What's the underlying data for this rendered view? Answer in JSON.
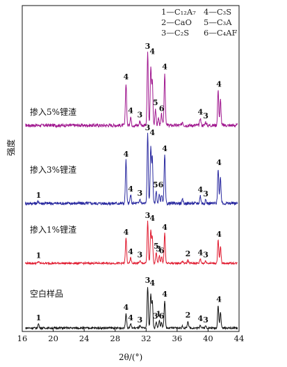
{
  "chart_data": {
    "type": "line",
    "title": "",
    "xlabel": "2θ/(°)",
    "ylabel": "强度",
    "xlim": [
      16,
      44
    ],
    "xticks": [
      16,
      20,
      24,
      28,
      32,
      36,
      40,
      44
    ],
    "tick_labels": [
      "16",
      "20",
      "24",
      "28",
      "32",
      "36",
      "40",
      "44"
    ],
    "grid": false,
    "legend_position": "top-right",
    "legend": [
      {
        "id": "1",
        "label": "1—C₁₂A₇"
      },
      {
        "id": "2",
        "label": "2—CaO"
      },
      {
        "id": "3",
        "label": "3—C₂S"
      },
      {
        "id": "4",
        "label": "4—C₃S"
      },
      {
        "id": "5",
        "label": "5—C₃A"
      },
      {
        "id": "6",
        "label": "6—C₄AF"
      }
    ],
    "series": [
      {
        "name": "掺入5%锂渣",
        "color": "#a0178f",
        "peaks": [
          [
            29.4,
            0.58
          ],
          [
            30.0,
            0.12
          ],
          [
            31.2,
            0.06
          ],
          [
            32.2,
            1.0
          ],
          [
            32.6,
            0.78
          ],
          [
            32.8,
            0.62
          ],
          [
            33.2,
            0.23
          ],
          [
            33.6,
            0.1
          ],
          [
            34.0,
            0.15
          ],
          [
            34.4,
            0.72
          ],
          [
            36.7,
            0.05
          ],
          [
            39.0,
            0.1
          ],
          [
            39.7,
            0.05
          ],
          [
            41.3,
            0.48
          ],
          [
            41.6,
            0.35
          ]
        ],
        "peak_labels": [
          {
            "text": "4",
            "x": 29.4,
            "h": 0.58
          },
          {
            "text": "4",
            "x": 30.0,
            "h": 0.12
          },
          {
            "text": "3",
            "x": 31.2,
            "h": 0.06
          },
          {
            "text": "3",
            "x": 32.2,
            "h": 1.0
          },
          {
            "text": "4",
            "x": 32.8,
            "h": 0.93
          },
          {
            "text": "5",
            "x": 33.2,
            "h": 0.23
          },
          {
            "text": "6",
            "x": 34.0,
            "h": 0.15
          },
          {
            "text": "4",
            "x": 34.4,
            "h": 0.72
          },
          {
            "text": "4",
            "x": 39.0,
            "h": 0.1
          },
          {
            "text": "3",
            "x": 39.7,
            "h": 0.05
          },
          {
            "text": "4",
            "x": 41.4,
            "h": 0.48
          }
        ]
      },
      {
        "name": "掺入3%锂渣",
        "color": "#2a2aa0",
        "peaks": [
          [
            18.1,
            0.03
          ],
          [
            29.4,
            0.62
          ],
          [
            30.0,
            0.12
          ],
          [
            31.2,
            0.06
          ],
          [
            32.2,
            1.0
          ],
          [
            32.6,
            0.8
          ],
          [
            32.8,
            0.66
          ],
          [
            33.3,
            0.18
          ],
          [
            33.7,
            0.12
          ],
          [
            34.0,
            0.13
          ],
          [
            34.4,
            0.7
          ],
          [
            36.7,
            0.05
          ],
          [
            39.0,
            0.11
          ],
          [
            39.7,
            0.05
          ],
          [
            41.3,
            0.5
          ],
          [
            41.6,
            0.37
          ]
        ],
        "peak_labels": [
          {
            "text": "1",
            "x": 18.1,
            "h": 0.03
          },
          {
            "text": "4",
            "x": 29.4,
            "h": 0.62
          },
          {
            "text": "4",
            "x": 30.0,
            "h": 0.12
          },
          {
            "text": "3",
            "x": 31.2,
            "h": 0.06
          },
          {
            "text": "3",
            "x": 32.2,
            "h": 1.0
          },
          {
            "text": "4",
            "x": 32.8,
            "h": 0.93
          },
          {
            "text": "5",
            "x": 33.2,
            "h": 0.18
          },
          {
            "text": "6",
            "x": 33.9,
            "h": 0.18
          },
          {
            "text": "4",
            "x": 34.4,
            "h": 0.7
          },
          {
            "text": "4",
            "x": 39.0,
            "h": 0.11
          },
          {
            "text": "3",
            "x": 39.7,
            "h": 0.05
          },
          {
            "text": "4",
            "x": 41.4,
            "h": 0.5
          }
        ]
      },
      {
        "name": "掺入1%锂渣",
        "color": "#e0192e",
        "peaks": [
          [
            18.1,
            0.04
          ],
          [
            29.4,
            0.6
          ],
          [
            30.0,
            0.13
          ],
          [
            31.2,
            0.06
          ],
          [
            32.2,
            1.0
          ],
          [
            32.6,
            0.78
          ],
          [
            32.8,
            0.64
          ],
          [
            33.3,
            0.27
          ],
          [
            33.7,
            0.18
          ],
          [
            34.0,
            0.16
          ],
          [
            34.4,
            0.72
          ],
          [
            36.7,
            0.05
          ],
          [
            37.4,
            0.08
          ],
          [
            39.0,
            0.11
          ],
          [
            39.7,
            0.06
          ],
          [
            41.3,
            0.55
          ],
          [
            41.6,
            0.4
          ]
        ],
        "peak_labels": [
          {
            "text": "1",
            "x": 18.1,
            "h": 0.04
          },
          {
            "text": "4",
            "x": 29.4,
            "h": 0.6
          },
          {
            "text": "4",
            "x": 30.0,
            "h": 0.13
          },
          {
            "text": "3",
            "x": 31.2,
            "h": 0.06
          },
          {
            "text": "3",
            "x": 32.2,
            "h": 1.0
          },
          {
            "text": "4",
            "x": 32.8,
            "h": 0.93
          },
          {
            "text": "5",
            "x": 33.3,
            "h": 0.27
          },
          {
            "text": "3",
            "x": 33.6,
            "h": 0.2
          },
          {
            "text": "6",
            "x": 34.0,
            "h": 0.16
          },
          {
            "text": "4",
            "x": 34.4,
            "h": 0.72
          },
          {
            "text": "2",
            "x": 37.4,
            "h": 0.08
          },
          {
            "text": "4",
            "x": 39.0,
            "h": 0.11
          },
          {
            "text": "3",
            "x": 39.7,
            "h": 0.06
          },
          {
            "text": "4",
            "x": 41.4,
            "h": 0.55
          }
        ]
      },
      {
        "name": "空白样品",
        "color": "#111111",
        "peaks": [
          [
            18.1,
            0.1
          ],
          [
            29.4,
            0.35
          ],
          [
            30.0,
            0.1
          ],
          [
            31.2,
            0.05
          ],
          [
            32.2,
            1.0
          ],
          [
            32.6,
            0.8
          ],
          [
            32.8,
            0.64
          ],
          [
            33.3,
            0.14
          ],
          [
            33.7,
            0.19
          ],
          [
            34.0,
            0.14
          ],
          [
            34.4,
            0.67
          ],
          [
            36.7,
            0.04
          ],
          [
            37.4,
            0.17
          ],
          [
            39.0,
            0.08
          ],
          [
            39.7,
            0.05
          ],
          [
            41.3,
            0.54
          ],
          [
            41.6,
            0.38
          ]
        ],
        "peak_labels": [
          {
            "text": "1",
            "x": 18.1,
            "h": 0.1
          },
          {
            "text": "4",
            "x": 29.4,
            "h": 0.35
          },
          {
            "text": "4",
            "x": 30.0,
            "h": 0.1
          },
          {
            "text": "3",
            "x": 31.2,
            "h": 0.05
          },
          {
            "text": "3",
            "x": 32.2,
            "h": 1.0
          },
          {
            "text": "4",
            "x": 32.8,
            "h": 0.93
          },
          {
            "text": "3",
            "x": 33.2,
            "h": 0.14
          },
          {
            "text": "1",
            "x": 33.6,
            "h": 0.19
          },
          {
            "text": "6",
            "x": 34.0,
            "h": 0.14
          },
          {
            "text": "4",
            "x": 34.4,
            "h": 0.67
          },
          {
            "text": "2",
            "x": 37.4,
            "h": 0.17
          },
          {
            "text": "4",
            "x": 39.0,
            "h": 0.08
          },
          {
            "text": "3",
            "x": 39.7,
            "h": 0.05
          },
          {
            "text": "4",
            "x": 41.4,
            "h": 0.54
          }
        ]
      }
    ]
  }
}
